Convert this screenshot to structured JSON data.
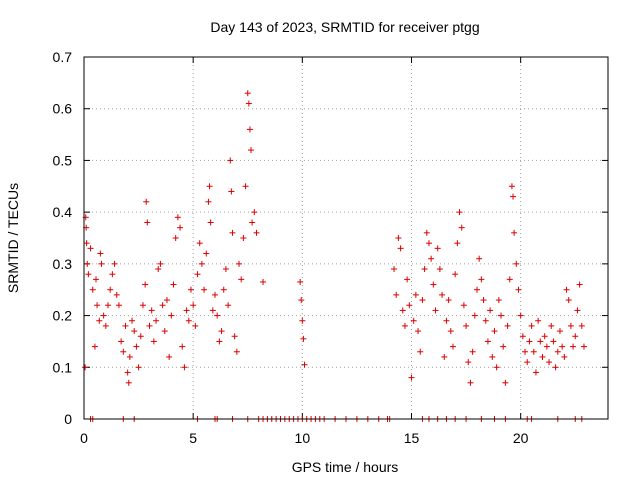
{
  "chart_data": {
    "type": "scatter",
    "title": "Day 143 of 2023, SRMTID for receiver ptgg",
    "xlabel": "GPS time / hours",
    "ylabel": "SRMTID / TECUs",
    "xlim": [
      0,
      24
    ],
    "ylim": [
      0,
      0.7
    ],
    "grid": true,
    "marker": "+",
    "color": "#dd0000",
    "xticks": [
      0,
      5,
      10,
      15,
      20
    ],
    "xtick_labels": [
      "0",
      "5",
      "10",
      "15",
      "20"
    ],
    "yticks": [
      0,
      0.1,
      0.2,
      0.3,
      0.4,
      0.5,
      0.6,
      0.7
    ],
    "ytick_labels": [
      "0",
      "0.1",
      "0.2",
      "0.3",
      "0.4",
      "0.5",
      "0.6",
      "0.7"
    ],
    "series": [
      {
        "name": "SRMTID",
        "points": [
          [
            0.05,
            0.1
          ],
          [
            0.08,
            0.39
          ],
          [
            0.1,
            0.37
          ],
          [
            0.12,
            0.34
          ],
          [
            0.15,
            0.3
          ],
          [
            0.2,
            0.28
          ],
          [
            0.3,
            0.33
          ],
          [
            0.4,
            0.25
          ],
          [
            0.5,
            0.14
          ],
          [
            0.55,
            0.27
          ],
          [
            0.6,
            0.22
          ],
          [
            0.7,
            0.19
          ],
          [
            0.75,
            0.32
          ],
          [
            0.8,
            0.3
          ],
          [
            0.9,
            0.2
          ],
          [
            1.0,
            0.18
          ],
          [
            1.1,
            0.22
          ],
          [
            1.2,
            0.25
          ],
          [
            1.3,
            0.28
          ],
          [
            1.4,
            0.3
          ],
          [
            1.5,
            0.24
          ],
          [
            1.6,
            0.22
          ],
          [
            1.7,
            0.15
          ],
          [
            1.8,
            0.13
          ],
          [
            1.9,
            0.18
          ],
          [
            2.0,
            0.09
          ],
          [
            2.05,
            0.07
          ],
          [
            2.1,
            0.12
          ],
          [
            2.2,
            0.19
          ],
          [
            2.3,
            0.17
          ],
          [
            2.4,
            0.14
          ],
          [
            2.5,
            0.1
          ],
          [
            2.6,
            0.16
          ],
          [
            2.7,
            0.22
          ],
          [
            2.8,
            0.26
          ],
          [
            2.85,
            0.42
          ],
          [
            2.9,
            0.38
          ],
          [
            3.0,
            0.18
          ],
          [
            3.1,
            0.21
          ],
          [
            3.2,
            0.15
          ],
          [
            3.3,
            0.19
          ],
          [
            3.4,
            0.29
          ],
          [
            3.5,
            0.3
          ],
          [
            3.6,
            0.22
          ],
          [
            3.7,
            0.17
          ],
          [
            3.8,
            0.23
          ],
          [
            3.9,
            0.12
          ],
          [
            4.0,
            0.2
          ],
          [
            4.1,
            0.26
          ],
          [
            4.2,
            0.35
          ],
          [
            4.3,
            0.39
          ],
          [
            4.4,
            0.37
          ],
          [
            4.5,
            0.14
          ],
          [
            4.6,
            0.1
          ],
          [
            4.7,
            0.21
          ],
          [
            4.8,
            0.19
          ],
          [
            4.9,
            0.25
          ],
          [
            5.0,
            0.22
          ],
          [
            5.1,
            0.18
          ],
          [
            5.2,
            0.28
          ],
          [
            5.3,
            0.34
          ],
          [
            5.4,
            0.3
          ],
          [
            5.5,
            0.25
          ],
          [
            5.6,
            0.32
          ],
          [
            5.7,
            0.42
          ],
          [
            5.75,
            0.45
          ],
          [
            5.8,
            0.38
          ],
          [
            5.9,
            0.21
          ],
          [
            6.0,
            0.24
          ],
          [
            6.1,
            0.2
          ],
          [
            6.2,
            0.15
          ],
          [
            6.3,
            0.17
          ],
          [
            6.4,
            0.25
          ],
          [
            6.5,
            0.29
          ],
          [
            6.6,
            0.22
          ],
          [
            6.7,
            0.5
          ],
          [
            6.75,
            0.44
          ],
          [
            6.8,
            0.36
          ],
          [
            6.9,
            0.16
          ],
          [
            7.0,
            0.13
          ],
          [
            7.1,
            0.3
          ],
          [
            7.2,
            0.27
          ],
          [
            7.3,
            0.35
          ],
          [
            7.4,
            0.45
          ],
          [
            7.5,
            0.63
          ],
          [
            7.55,
            0.61
          ],
          [
            7.6,
            0.56
          ],
          [
            7.65,
            0.52
          ],
          [
            7.7,
            0.38
          ],
          [
            7.8,
            0.4
          ],
          [
            7.9,
            0.36
          ],
          [
            8.2,
            0.265
          ],
          [
            9.9,
            0.265
          ],
          [
            9.95,
            0.23
          ],
          [
            10.0,
            0.19
          ],
          [
            10.05,
            0.155
          ],
          [
            10.1,
            0.105
          ],
          [
            14.2,
            0.29
          ],
          [
            14.3,
            0.24
          ],
          [
            14.4,
            0.35
          ],
          [
            14.5,
            0.33
          ],
          [
            14.6,
            0.21
          ],
          [
            14.7,
            0.18
          ],
          [
            14.8,
            0.27
          ],
          [
            14.9,
            0.22
          ],
          [
            15.0,
            0.08
          ],
          [
            15.1,
            0.19
          ],
          [
            15.2,
            0.24
          ],
          [
            15.3,
            0.17
          ],
          [
            15.4,
            0.13
          ],
          [
            15.5,
            0.23
          ],
          [
            15.6,
            0.29
          ],
          [
            15.7,
            0.36
          ],
          [
            15.8,
            0.34
          ],
          [
            15.9,
            0.31
          ],
          [
            16.0,
            0.26
          ],
          [
            16.1,
            0.21
          ],
          [
            16.2,
            0.33
          ],
          [
            16.3,
            0.29
          ],
          [
            16.4,
            0.24
          ],
          [
            16.5,
            0.12
          ],
          [
            16.6,
            0.19
          ],
          [
            16.7,
            0.23
          ],
          [
            16.8,
            0.17
          ],
          [
            16.9,
            0.14
          ],
          [
            17.0,
            0.28
          ],
          [
            17.1,
            0.34
          ],
          [
            17.2,
            0.4
          ],
          [
            17.3,
            0.37
          ],
          [
            17.4,
            0.22
          ],
          [
            17.5,
            0.18
          ],
          [
            17.6,
            0.11
          ],
          [
            17.7,
            0.07
          ],
          [
            17.8,
            0.13
          ],
          [
            17.9,
            0.2
          ],
          [
            18.0,
            0.25
          ],
          [
            18.1,
            0.31
          ],
          [
            18.2,
            0.27
          ],
          [
            18.3,
            0.23
          ],
          [
            18.4,
            0.19
          ],
          [
            18.5,
            0.15
          ],
          [
            18.6,
            0.21
          ],
          [
            18.7,
            0.12
          ],
          [
            18.8,
            0.17
          ],
          [
            18.9,
            0.1
          ],
          [
            19.0,
            0.23
          ],
          [
            19.1,
            0.2
          ],
          [
            19.2,
            0.14
          ],
          [
            19.3,
            0.07
          ],
          [
            19.4,
            0.18
          ],
          [
            19.5,
            0.27
          ],
          [
            19.6,
            0.45
          ],
          [
            19.65,
            0.43
          ],
          [
            19.7,
            0.36
          ],
          [
            19.8,
            0.3
          ],
          [
            19.9,
            0.25
          ],
          [
            20.0,
            0.2
          ],
          [
            20.1,
            0.16
          ],
          [
            20.2,
            0.13
          ],
          [
            20.3,
            0.11
          ],
          [
            20.4,
            0.15
          ],
          [
            20.5,
            0.18
          ],
          [
            20.6,
            0.13
          ],
          [
            20.7,
            0.09
          ],
          [
            20.8,
            0.19
          ],
          [
            20.9,
            0.15
          ],
          [
            21.0,
            0.12
          ],
          [
            21.1,
            0.16
          ],
          [
            21.2,
            0.14
          ],
          [
            21.3,
            0.11
          ],
          [
            21.4,
            0.18
          ],
          [
            21.5,
            0.15
          ],
          [
            21.6,
            0.1
          ],
          [
            21.7,
            0.13
          ],
          [
            21.8,
            0.17
          ],
          [
            21.9,
            0.14
          ],
          [
            22.0,
            0.12
          ],
          [
            22.1,
            0.25
          ],
          [
            22.2,
            0.23
          ],
          [
            22.3,
            0.18
          ],
          [
            22.4,
            0.14
          ],
          [
            22.5,
            0.16
          ],
          [
            22.6,
            0.21
          ],
          [
            22.7,
            0.26
          ],
          [
            22.8,
            0.18
          ],
          [
            22.9,
            0.14
          ]
        ],
        "zero_points": [
          0.3,
          0.4,
          1.8,
          2.3,
          5.2,
          6.0,
          6.1,
          6.8,
          7.5,
          8.0,
          8.2,
          8.4,
          8.6,
          8.8,
          9.0,
          9.2,
          9.4,
          9.6,
          9.8,
          10.0,
          10.2,
          10.4,
          10.6,
          10.8,
          11.0,
          11.5,
          12.0,
          12.5,
          13.0,
          13.5,
          13.9,
          14.0,
          15.5,
          15.8,
          16.2,
          16.6,
          17.0,
          17.5,
          18.2,
          18.8,
          19.3,
          20.3,
          20.5,
          21.7,
          22.5,
          22.8
        ]
      }
    ]
  }
}
